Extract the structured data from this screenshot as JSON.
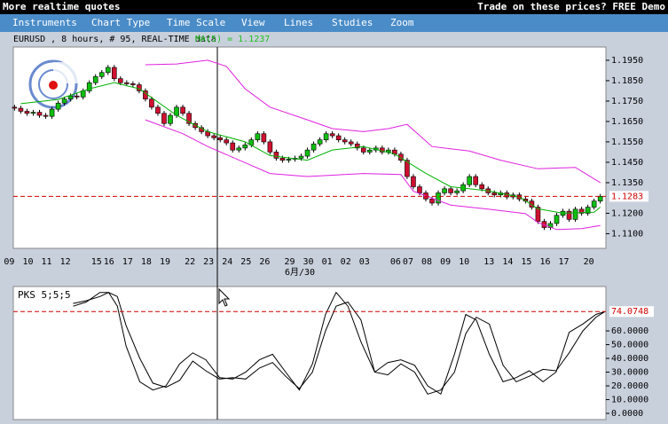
{
  "header": {
    "title": "More realtime quotes",
    "promo": "Trade on these prices? FREE Demo"
  },
  "menu": [
    "Instruments",
    "Chart Type",
    "Time Scale",
    "View",
    "Lines",
    "Studies",
    "Zoom"
  ],
  "chart_data": [
    {
      "type": "candlestick",
      "title": "EURUSD , 8 hours, # 95, REAL-TIME data",
      "indicator_label": "MA(5) = 1.1237",
      "month_label": "6月/30",
      "categories": [
        "09",
        null,
        null,
        "10",
        null,
        null,
        "11",
        null,
        null,
        "12",
        null,
        null,
        null,
        null,
        "15",
        null,
        "16",
        null,
        null,
        "17",
        null,
        null,
        "18",
        null,
        null,
        "19",
        null,
        null,
        null,
        "22",
        null,
        null,
        "23",
        null,
        null,
        "24",
        null,
        null,
        "25",
        null,
        null,
        "26",
        null,
        null,
        null,
        "29",
        null,
        null,
        "30",
        null,
        null,
        "01",
        null,
        null,
        "02",
        null,
        null,
        "03",
        null,
        null,
        null,
        null,
        "06",
        null,
        "07",
        null,
        null,
        "08",
        null,
        null,
        "09",
        null,
        null,
        "10",
        null,
        null,
        null,
        "13",
        null,
        null,
        "14",
        null,
        null,
        "15",
        null,
        null,
        "16",
        null,
        null,
        "17",
        null,
        null,
        null,
        "20",
        null
      ],
      "open": [
        1.172,
        1.1715,
        1.17,
        1.169,
        1.1695,
        1.168,
        1.1675,
        1.171,
        1.174,
        1.176,
        1.1775,
        1.177,
        1.18,
        1.184,
        1.187,
        1.189,
        1.1915,
        1.186,
        1.184,
        1.1835,
        1.183,
        1.18,
        1.176,
        1.172,
        1.169,
        1.164,
        1.168,
        1.172,
        1.169,
        1.164,
        1.162,
        1.16,
        1.158,
        1.157,
        1.156,
        1.1545,
        1.151,
        1.152,
        1.1535,
        1.156,
        1.159,
        1.155,
        1.15,
        1.147,
        1.146,
        1.1465,
        1.147,
        1.148,
        1.151,
        1.154,
        1.156,
        1.159,
        1.158,
        1.156,
        1.155,
        1.154,
        1.152,
        1.15,
        1.151,
        1.152,
        1.15,
        1.151,
        1.149,
        1.146,
        1.138,
        1.133,
        1.13,
        1.127,
        1.125,
        1.13,
        1.132,
        1.13,
        1.131,
        1.134,
        1.138,
        1.134,
        1.132,
        1.13,
        1.129,
        1.13,
        1.128,
        1.129,
        1.127,
        1.126,
        1.123,
        1.116,
        1.113,
        1.115,
        1.119,
        1.121,
        1.117,
        1.122,
        1.12,
        1.123,
        1.126
      ],
      "high": [
        1.1732,
        1.1727,
        1.1712,
        1.1707,
        1.1707,
        1.1692,
        1.1722,
        1.1752,
        1.1772,
        1.1787,
        1.1787,
        1.1812,
        1.1852,
        1.1882,
        1.1902,
        1.1927,
        1.1927,
        1.1872,
        1.1852,
        1.1847,
        1.1842,
        1.1812,
        1.1772,
        1.1732,
        1.1702,
        1.1692,
        1.1732,
        1.1732,
        1.1702,
        1.1652,
        1.1632,
        1.1612,
        1.1592,
        1.1582,
        1.1572,
        1.1557,
        1.1532,
        1.1547,
        1.1572,
        1.1602,
        1.1602,
        1.1562,
        1.1512,
        1.1482,
        1.1477,
        1.1482,
        1.1492,
        1.1522,
        1.1552,
        1.1572,
        1.1602,
        1.1602,
        1.1592,
        1.1572,
        1.1562,
        1.1552,
        1.1532,
        1.1522,
        1.1532,
        1.1532,
        1.1522,
        1.1522,
        1.1502,
        1.1472,
        1.1392,
        1.1342,
        1.1312,
        1.1282,
        1.1312,
        1.1332,
        1.1332,
        1.1322,
        1.1352,
        1.1392,
        1.1392,
        1.1352,
        1.1332,
        1.1312,
        1.1312,
        1.1312,
        1.1302,
        1.1302,
        1.1282,
        1.1272,
        1.1242,
        1.1172,
        1.1162,
        1.1202,
        1.1222,
        1.1222,
        1.1232,
        1.1232,
        1.1242,
        1.1272,
        1.1295
      ],
      "low": [
        1.1703,
        1.1688,
        1.1678,
        1.1678,
        1.1668,
        1.1663,
        1.1663,
        1.1698,
        1.1728,
        1.1748,
        1.1758,
        1.1758,
        1.1788,
        1.1828,
        1.1858,
        1.1878,
        1.1848,
        1.1828,
        1.1823,
        1.1818,
        1.1788,
        1.1748,
        1.1708,
        1.1678,
        1.1628,
        1.1628,
        1.1668,
        1.1678,
        1.1628,
        1.1608,
        1.1588,
        1.1568,
        1.1558,
        1.1548,
        1.1533,
        1.1498,
        1.1498,
        1.1508,
        1.1523,
        1.1548,
        1.1538,
        1.1488,
        1.1458,
        1.1448,
        1.1448,
        1.1453,
        1.1458,
        1.1468,
        1.1498,
        1.1528,
        1.1548,
        1.1568,
        1.1548,
        1.1538,
        1.1528,
        1.1508,
        1.1488,
        1.1488,
        1.1498,
        1.1488,
        1.1488,
        1.1478,
        1.1448,
        1.1368,
        1.1318,
        1.1288,
        1.1258,
        1.1238,
        1.1238,
        1.1288,
        1.1288,
        1.1288,
        1.1298,
        1.1328,
        1.1328,
        1.1308,
        1.1288,
        1.1278,
        1.1278,
        1.1268,
        1.1268,
        1.1258,
        1.1248,
        1.1218,
        1.1148,
        1.1118,
        1.1118,
        1.1138,
        1.1178,
        1.1158,
        1.1158,
        1.1188,
        1.1188,
        1.1218,
        1.1248
      ],
      "close": [
        1.1715,
        1.17,
        1.169,
        1.1695,
        1.168,
        1.1675,
        1.171,
        1.174,
        1.176,
        1.1775,
        1.177,
        1.18,
        1.184,
        1.187,
        1.189,
        1.1915,
        1.186,
        1.184,
        1.1835,
        1.183,
        1.18,
        1.176,
        1.172,
        1.169,
        1.164,
        1.168,
        1.172,
        1.169,
        1.164,
        1.162,
        1.16,
        1.158,
        1.157,
        1.156,
        1.1545,
        1.151,
        1.152,
        1.1535,
        1.156,
        1.159,
        1.155,
        1.15,
        1.147,
        1.146,
        1.1465,
        1.147,
        1.148,
        1.151,
        1.154,
        1.156,
        1.159,
        1.158,
        1.156,
        1.155,
        1.154,
        1.152,
        1.15,
        1.151,
        1.152,
        1.15,
        1.151,
        1.149,
        1.146,
        1.138,
        1.133,
        1.13,
        1.127,
        1.125,
        1.13,
        1.132,
        1.13,
        1.131,
        1.134,
        1.138,
        1.134,
        1.132,
        1.13,
        1.129,
        1.13,
        1.128,
        1.129,
        1.127,
        1.126,
        1.123,
        1.116,
        1.113,
        1.115,
        1.119,
        1.121,
        1.117,
        1.122,
        1.12,
        1.123,
        1.126,
        1.1283
      ],
      "up_color": "#10c010",
      "down_color": "#d01030",
      "series": [
        {
          "color": "#e020e0",
          "x": [
            21,
            26,
            31,
            34,
            37,
            41,
            47,
            51,
            56,
            60,
            63,
            67,
            73,
            78,
            84,
            90,
            94
          ],
          "values": [
            1.1928,
            1.1932,
            1.195,
            1.192,
            1.181,
            1.172,
            1.1658,
            1.1615,
            1.16,
            1.1615,
            1.1636,
            1.1527,
            1.1505,
            1.146,
            1.1418,
            1.1425,
            1.135
          ]
        },
        {
          "color": "#e020e0",
          "x": [
            21,
            27,
            31,
            37,
            41,
            47,
            56,
            62,
            64,
            70,
            76,
            82,
            84,
            87,
            91,
            94
          ],
          "values": [
            1.1658,
            1.159,
            1.1527,
            1.1448,
            1.1395,
            1.138,
            1.1395,
            1.139,
            1.1308,
            1.124,
            1.122,
            1.1198,
            1.1155,
            1.112,
            1.1125,
            1.114
          ]
        },
        {
          "color": "#00b000",
          "x": [
            1,
            7,
            12,
            16,
            20,
            26,
            31,
            37,
            41,
            47,
            51,
            56,
            61,
            66,
            70,
            76,
            81,
            84,
            88,
            93,
            94
          ],
          "values": [
            1.1737,
            1.1758,
            1.181,
            1.184,
            1.181,
            1.168,
            1.16,
            1.155,
            1.1483,
            1.146,
            1.151,
            1.1527,
            1.149,
            1.1396,
            1.133,
            1.131,
            1.128,
            1.1222,
            1.12,
            1.1205,
            1.123
          ]
        }
      ],
      "last_price": {
        "value": 1.1283,
        "label": "1.1283"
      },
      "xlim": [
        -0.2,
        94.9
      ],
      "ylim": [
        1.1028,
        1.2015
      ],
      "yticks": [
        {
          "value": 1.11,
          "label": "1.1100"
        },
        {
          "value": 1.12,
          "label": "1.1200"
        },
        {
          "value": 1.135,
          "label": "1.1350"
        },
        {
          "value": 1.145,
          "label": "1.1450"
        },
        {
          "value": 1.155,
          "label": "1.1550"
        },
        {
          "value": 1.165,
          "label": "1.1650"
        },
        {
          "value": 1.175,
          "label": "1.1750"
        },
        {
          "value": 1.185,
          "label": "1.1850"
        },
        {
          "value": 1.195,
          "label": "1.1950"
        }
      ]
    },
    {
      "type": "line",
      "title": "PKS 5;5;5",
      "x": [
        9.4,
        11.5,
        13.7,
        15.1,
        16.5,
        17.9,
        20.1,
        22.2,
        24.3,
        26.5,
        28.6,
        30.7,
        32.9,
        35.0,
        37.1,
        39.3,
        41.4,
        43.5,
        45.7,
        47.8,
        49.9,
        51.6,
        53.5,
        55.6,
        57.8,
        59.9,
        62.0,
        64.2,
        66.3,
        68.4,
        70.6,
        72.4,
        74.1,
        76.2,
        78.4,
        80.5,
        82.6,
        84.8,
        86.9,
        89.0,
        91.2,
        93.3,
        94.7
      ],
      "series": [
        {
          "color": "#000000",
          "values": [
            78,
            81,
            88,
            88,
            78,
            49,
            23,
            17,
            20,
            36,
            44,
            39,
            26,
            25,
            30,
            39,
            43,
            30,
            17,
            36,
            72,
            88,
            78,
            52,
            30,
            37,
            39,
            35,
            20,
            14,
            43,
            72,
            68,
            43,
            23,
            26,
            31,
            23,
            30,
            59,
            65,
            72,
            74
          ]
        },
        {
          "color": "#000000",
          "values": [
            80,
            82,
            85,
            88,
            85,
            64,
            40,
            22,
            19,
            24,
            38,
            31,
            25,
            26,
            25,
            33,
            37,
            27,
            18,
            30,
            60,
            78,
            81,
            68,
            30,
            28,
            36,
            30,
            14,
            17,
            30,
            58,
            70,
            65,
            35,
            23,
            27,
            32,
            31,
            44,
            60,
            70,
            74
          ]
        }
      ],
      "last_value": {
        "value": 74.0748,
        "label": "74.0748"
      },
      "xlim": [
        -0.2,
        94.9
      ],
      "ylim": [
        -4.5,
        92.3
      ],
      "yticks": [
        {
          "value": 0,
          "label": "0.0000"
        },
        {
          "value": 10,
          "label": "10.0000"
        },
        {
          "value": 20,
          "label": "20.0000"
        },
        {
          "value": 30,
          "label": "30.0000"
        },
        {
          "value": 40,
          "label": "40.0000"
        },
        {
          "value": 50,
          "label": "50.0000"
        },
        {
          "value": 60,
          "label": "60.0000"
        }
      ]
    }
  ]
}
